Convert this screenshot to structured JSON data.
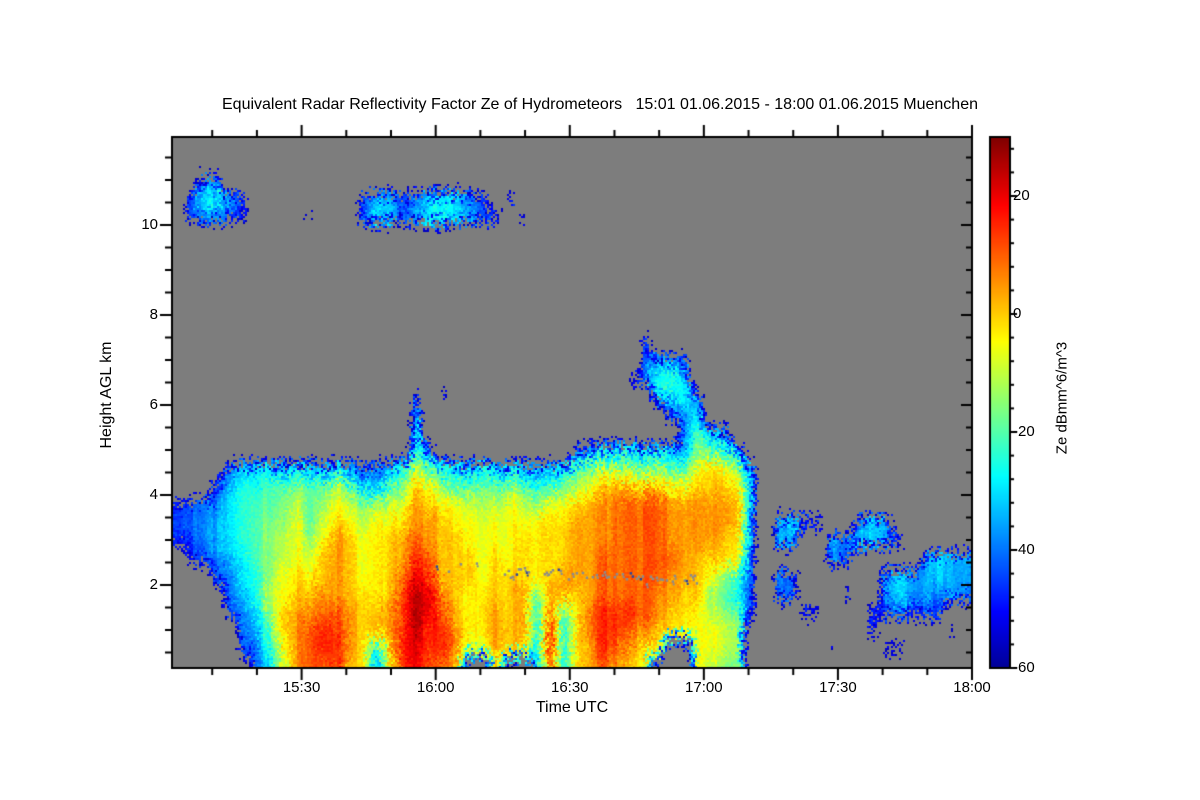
{
  "title": "Equivalent Radar Reflectivity Factor Ze of Hydrometeors   15:01 01.06.2015 - 18:00 01.06.2015 Muenchen",
  "x_axis": {
    "label": "Time UTC",
    "major_ticks": [
      {
        "t": 30,
        "label": "15:30"
      },
      {
        "t": 60,
        "label": "16:00"
      },
      {
        "t": 90,
        "label": "16:30"
      },
      {
        "t": 120,
        "label": "17:00"
      },
      {
        "t": 150,
        "label": "17:30"
      },
      {
        "t": 180,
        "label": "18:00"
      }
    ],
    "minor_ticks_t": [
      10,
      20,
      40,
      50,
      70,
      80,
      100,
      110,
      130,
      140,
      160,
      170
    ],
    "t_start_min": 1,
    "t_end_min": 180
  },
  "y_axis": {
    "label": "Height AGL km",
    "major_ticks": [
      {
        "h": 2,
        "label": "2"
      },
      {
        "h": 4,
        "label": "4"
      },
      {
        "h": 6,
        "label": "6"
      },
      {
        "h": 8,
        "label": "8"
      },
      {
        "h": 10,
        "label": "10"
      }
    ],
    "minor_ticks_h": [
      0.5,
      1,
      1.5,
      2.5,
      3,
      3.5,
      4.5,
      5,
      5.5,
      6.5,
      7,
      7.5,
      8.5,
      9,
      9.5,
      10.5,
      11,
      11.5
    ],
    "h_min_km": 0.15,
    "h_max_km": 11.95
  },
  "colorbar": {
    "label": "Ze dBmm^6/m^3",
    "v_min": -60,
    "v_max": 30,
    "major_ticks": [
      {
        "v": 20,
        "label": "20"
      },
      {
        "v": 0,
        "label": "0"
      },
      {
        "v": -20,
        "label": "-20"
      },
      {
        "v": -40,
        "label": "-40"
      },
      {
        "v": -60,
        "label": "-60"
      }
    ],
    "minor_ticks_v": [
      28,
      24,
      16,
      12,
      8,
      4,
      -4,
      -8,
      -12,
      -16,
      -24,
      -28,
      -32,
      -36,
      -44,
      -48,
      -52,
      -56
    ]
  },
  "colors": {
    "background": "#ffffff",
    "no_echo_gray": "#7d7d7d",
    "axis": "#000000",
    "text": "#000000",
    "speckle_gray": "#8c8c8c",
    "speckle_blue": "#31459b"
  },
  "chart_data": {
    "type": "heatmap",
    "title": "Equivalent Radar Reflectivity Factor Ze of Hydrometeors 15:01 01.06.2015 - 18:00 01.06.2015 Muenchen",
    "xlabel": "Time UTC",
    "ylabel": "Height AGL km",
    "value_label": "Ze dBmm^6/m^3",
    "colormap": "jet",
    "value_range_dB": [
      -60,
      30
    ],
    "time_range_utc": [
      "15:01",
      "18:00"
    ],
    "height_range_km": [
      0.15,
      11.95
    ],
    "grid_cols": 60,
    "grid_rows": 30,
    "col_duration_min": 3,
    "row_height_km": 0.4,
    "no_echo_char": ".",
    "levels_dB": {
      "1": -55,
      "2": -50,
      "3": -45,
      "4": -40,
      "5": -35,
      "6": -30,
      "7": -25,
      "8": -20,
      "9": -15,
      "a": -10,
      "b": -5,
      "c": 0,
      "d": 5,
      "e": 10,
      "f": 15,
      "g": 20,
      "h": 25
    },
    "rows_top_to_bottom": [
      "............................................................",
      "............................................................",
      "..44........................................................",
      ".36753........3553466643.3..................................",
      ".34432....2...46645776543.3.................................",
      "............................................................",
      "............................................................",
      "............................................................",
      "............................................................",
      "............................................................",
      "............................................................",
      "...................................3........................",
      "...................................3543.....................",
      "..................................24786.....................",
      "..................3.2...............5674....................",
      "..................5..................356....................",
      "..................7...................4854..................",
      "..................74..........3456656559875.................",
      "....45665654643357a8665756545689aa98988bcb94................",
      "...357788988a86589cb9889898789abcdcccbbcccb5................",
      "234467889a89ba99abdcbbaaaba9bbcddeeeedddddc5................",
      "344567899b8acbabbcddcbbbbbbbccdddeeeedddddc4.5643..365......",
      "23456789ab9bdcbbcdedccbbbbcbccdddeeeeddddcb4.55..546653.....",
      ".2345689abacdcbbcdfecccbcbcbccddeeeeeedcccb3.....54.....5655",
      "...34679bcbcdcbbcegfcccbcccbcdddeeeeeddcb973.44......5655655",
      "....457abccddccbcfhgdcbcccd8ddcdeeeeddcc9863.44...3..5655454",
      "....3469cddeedccdfhgecbcdcd7e8cefffedccba982...32...334233..",
      ".....458cdeffdccdfhffdbcdcd7f7ceffedccbbba9.........3.....2.",
      ".....347bdeffdc6cggffdabdcc6f7cdfedcb..bba9......2...22.....",
      "......46adeefcc5bfgeec..c..6e7cdedcb...ba98................."
    ],
    "melting_layer_artifact": {
      "t_start_min": 60,
      "t_dense_min": 75,
      "t_end_min": 119,
      "h_start_km": 2.42,
      "h_end_km": 2.12
    }
  }
}
